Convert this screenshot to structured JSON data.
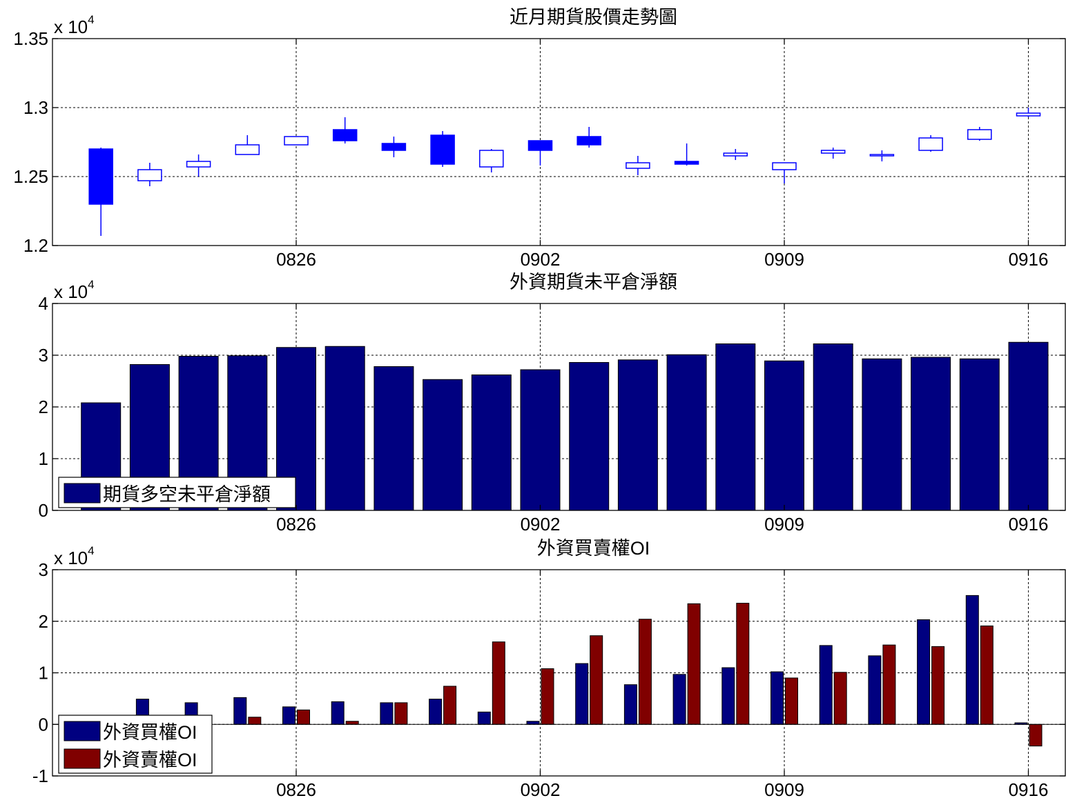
{
  "chart_data": [
    {
      "type": "candlestick",
      "title": "近月期貨股價走勢圖",
      "y_multiplier": "x 10",
      "y_exponent": "4",
      "ylim": [
        1.2,
        1.35
      ],
      "yticks": [
        1.2,
        1.25,
        1.3,
        1.35
      ],
      "ytick_labels": [
        "1.2",
        "1.25",
        "1.3",
        "1.35"
      ],
      "xticks": [
        [
          "0826",
          5
        ],
        [
          "0902",
          10
        ],
        [
          "0909",
          15
        ],
        [
          "0916",
          20
        ]
      ],
      "grid": true,
      "candles": [
        {
          "x": 1,
          "open": 1.27,
          "close": 1.23,
          "high": 1.271,
          "low": 1.207
        },
        {
          "x": 2,
          "open": 1.247,
          "close": 1.255,
          "high": 1.26,
          "low": 1.243
        },
        {
          "x": 3,
          "open": 1.257,
          "close": 1.261,
          "high": 1.266,
          "low": 1.25
        },
        {
          "x": 4,
          "open": 1.266,
          "close": 1.273,
          "high": 1.28,
          "low": 1.266
        },
        {
          "x": 5,
          "open": 1.273,
          "close": 1.279,
          "high": 1.279,
          "low": 1.273
        },
        {
          "x": 6,
          "open": 1.284,
          "close": 1.276,
          "high": 1.293,
          "low": 1.274
        },
        {
          "x": 7,
          "open": 1.274,
          "close": 1.269,
          "high": 1.279,
          "low": 1.264
        },
        {
          "x": 8,
          "open": 1.28,
          "close": 1.259,
          "high": 1.283,
          "low": 1.257
        },
        {
          "x": 9,
          "open": 1.257,
          "close": 1.269,
          "high": 1.27,
          "low": 1.253
        },
        {
          "x": 10,
          "open": 1.276,
          "close": 1.269,
          "high": 1.276,
          "low": 1.258
        },
        {
          "x": 11,
          "open": 1.279,
          "close": 1.273,
          "high": 1.286,
          "low": 1.271
        },
        {
          "x": 12,
          "open": 1.256,
          "close": 1.26,
          "high": 1.265,
          "low": 1.251
        },
        {
          "x": 13,
          "open": 1.261,
          "close": 1.259,
          "high": 1.274,
          "low": 1.258
        },
        {
          "x": 14,
          "open": 1.265,
          "close": 1.267,
          "high": 1.27,
          "low": 1.262
        },
        {
          "x": 15,
          "open": 1.255,
          "close": 1.26,
          "high": 1.26,
          "low": 1.245
        },
        {
          "x": 16,
          "open": 1.267,
          "close": 1.269,
          "high": 1.271,
          "low": 1.263
        },
        {
          "x": 17,
          "open": 1.265,
          "close": 1.266,
          "high": 1.269,
          "low": 1.261
        },
        {
          "x": 18,
          "open": 1.269,
          "close": 1.278,
          "high": 1.28,
          "low": 1.268
        },
        {
          "x": 19,
          "open": 1.277,
          "close": 1.284,
          "high": 1.286,
          "low": 1.276
        },
        {
          "x": 20,
          "open": 1.294,
          "close": 1.296,
          "high": 1.3,
          "low": 1.293
        }
      ]
    },
    {
      "type": "bar",
      "title": "外資期貨未平倉淨額",
      "y_multiplier": "x 10",
      "y_exponent": "4",
      "ylim": [
        0,
        4
      ],
      "yticks": [
        0,
        1,
        2,
        3,
        4
      ],
      "ytick_labels": [
        "0",
        "1",
        "2",
        "3",
        "4"
      ],
      "xticks": [
        [
          "0826",
          5
        ],
        [
          "0902",
          10
        ],
        [
          "0909",
          15
        ],
        [
          "0916",
          20
        ]
      ],
      "grid": true,
      "legend_position": "bottom-left",
      "series": [
        {
          "name": "期貨多空未平倉淨額",
          "color": "#000080",
          "x": [
            1,
            2,
            3,
            4,
            5,
            6,
            7,
            8,
            9,
            10,
            11,
            12,
            13,
            14,
            15,
            16,
            17,
            18,
            19,
            20
          ],
          "values": [
            2.08,
            2.82,
            2.98,
            2.99,
            3.15,
            3.17,
            2.78,
            2.53,
            2.62,
            2.72,
            2.86,
            2.91,
            3.01,
            3.22,
            2.89,
            3.22,
            2.93,
            2.96,
            2.93,
            3.25
          ]
        }
      ]
    },
    {
      "type": "bar",
      "title": "外資買賣權OI",
      "y_multiplier": "x 10",
      "y_exponent": "4",
      "ylim": [
        -1,
        3
      ],
      "yticks": [
        -1,
        0,
        1,
        2,
        3
      ],
      "ytick_labels": [
        "-1",
        "0",
        "1",
        "2",
        "3"
      ],
      "xticks": [
        [
          "0826",
          5
        ],
        [
          "0902",
          10
        ],
        [
          "0909",
          15
        ],
        [
          "0916",
          20
        ]
      ],
      "grid": true,
      "legend_position": "bottom-left",
      "series": [
        {
          "name": "外資買權OI",
          "color": "#000080",
          "x": [
            1,
            2,
            3,
            4,
            5,
            6,
            7,
            8,
            9,
            10,
            11,
            12,
            13,
            14,
            15,
            16,
            17,
            18,
            19,
            20
          ],
          "values": [
            0.0,
            0.49,
            0.42,
            0.52,
            0.34,
            0.44,
            0.42,
            0.49,
            0.24,
            0.06,
            1.18,
            0.77,
            0.97,
            1.1,
            1.02,
            1.53,
            1.33,
            2.03,
            2.5,
            0.03
          ]
        },
        {
          "name": "外資賣權OI",
          "color": "#800000",
          "x": [
            1,
            2,
            3,
            4,
            5,
            6,
            7,
            8,
            9,
            10,
            11,
            12,
            13,
            14,
            15,
            16,
            17,
            18,
            19,
            20
          ],
          "values": [
            0.0,
            0.0,
            0.0,
            0.14,
            0.28,
            0.06,
            0.42,
            0.74,
            1.6,
            1.08,
            1.72,
            2.04,
            2.34,
            2.35,
            0.9,
            1.01,
            1.54,
            1.51,
            1.91,
            -0.42
          ]
        }
      ]
    }
  ]
}
